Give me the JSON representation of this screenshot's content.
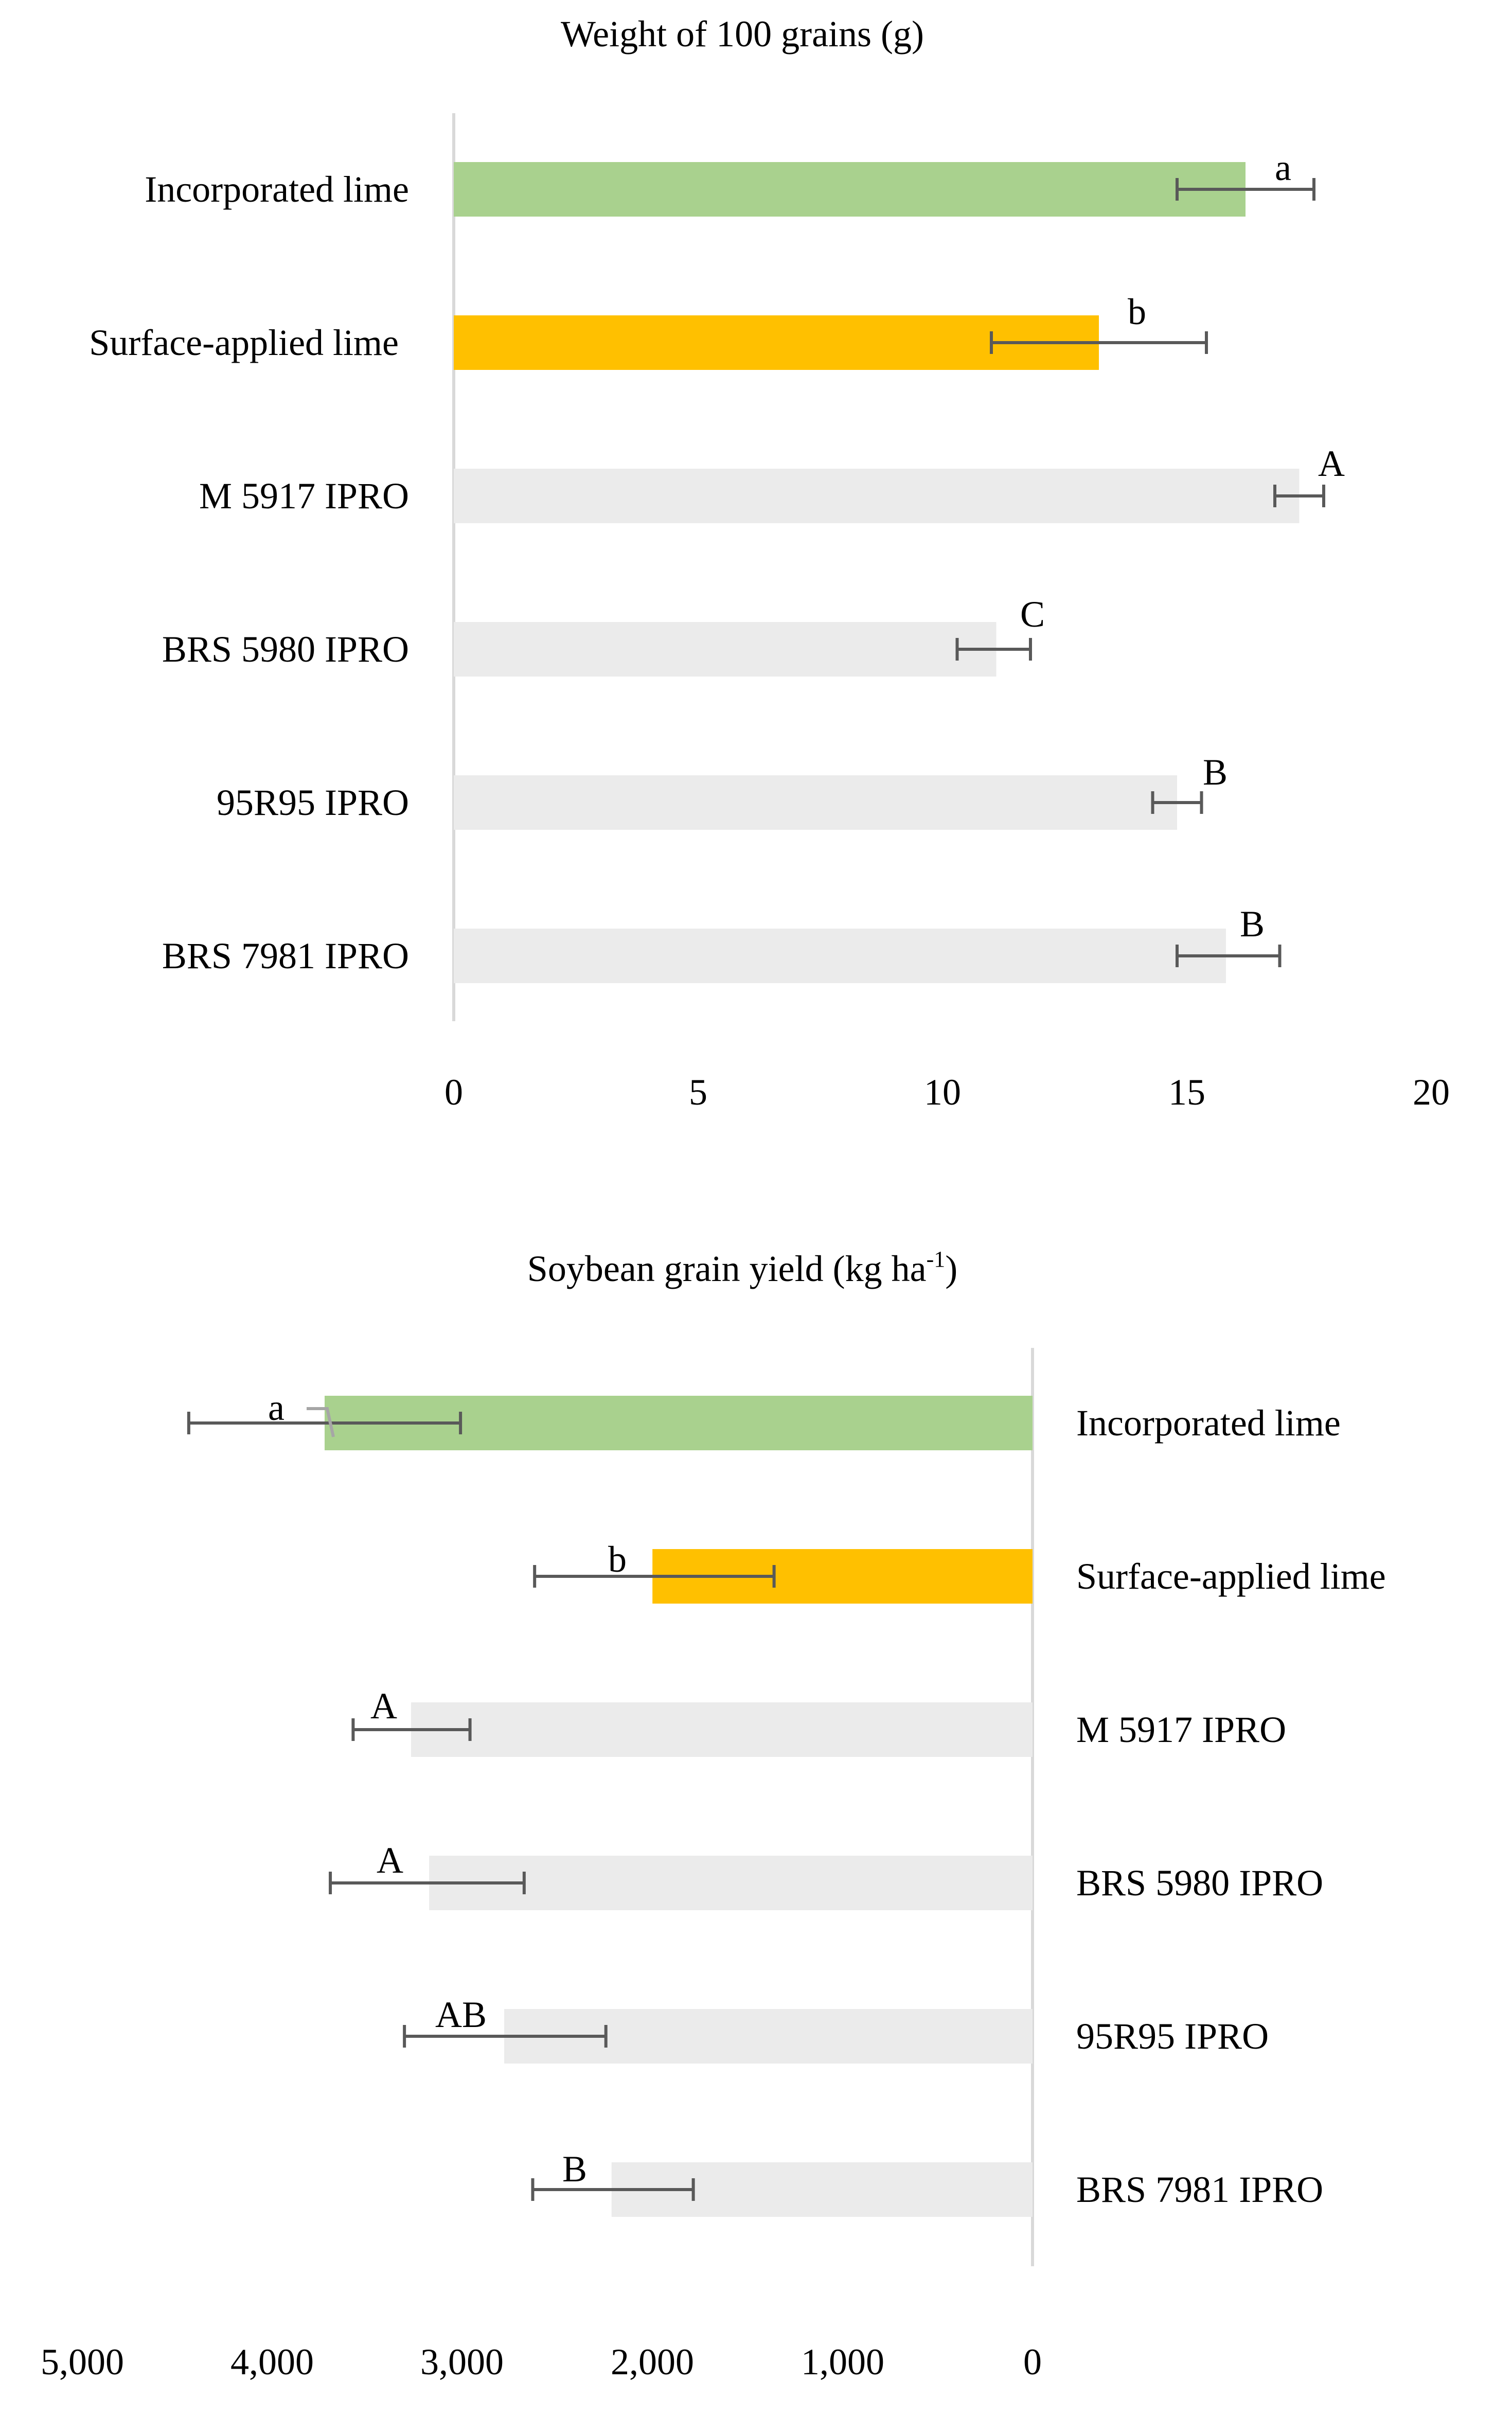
{
  "colors": {
    "incorporated": "#A9D18E",
    "surface": "#FFC000",
    "cultivar": "#EBEBEB",
    "axis": "#D9D9D9",
    "errorbar": "#595959"
  },
  "chart_data": [
    {
      "type": "bar",
      "orientation": "horizontal",
      "title": "Weight of 100 grains (g)",
      "xlabel": "",
      "ylabel": "",
      "xlim": [
        0,
        20
      ],
      "xticks": [
        "0",
        "5",
        "10",
        "15",
        "20"
      ],
      "grid": false,
      "legend": null,
      "categories": [
        "Incorporated lime",
        "Surface-applied lime",
        "M 5917 IPRO",
        "BRS 5980 IPRO",
        "95R95 IPRO",
        "BRS 7981 IPRO"
      ],
      "values": [
        16.2,
        13.2,
        17.3,
        11.1,
        14.8,
        15.8
      ],
      "error_low": [
        14.8,
        11.0,
        16.8,
        10.3,
        14.3,
        14.8
      ],
      "error_high": [
        17.6,
        15.4,
        17.8,
        11.8,
        15.3,
        16.9
      ],
      "letters": [
        "a",
        "b",
        "A",
        "C",
        "B",
        "B"
      ]
    },
    {
      "type": "bar",
      "orientation": "horizontal",
      "axis_reversed": true,
      "title": "Soybean grain yield (kg ha-1)",
      "xlabel": "",
      "ylabel": "",
      "xlim": [
        0,
        5000
      ],
      "xticks": [
        "5,000",
        "4,000",
        "3,000",
        "2,000",
        "1,000",
        "0"
      ],
      "grid": false,
      "legend": null,
      "categories": [
        "Incorporated lime",
        "Surface-applied lime",
        "M 5917 IPRO",
        "BRS 5980 IPRO",
        "95R95 IPRO",
        "BRS 7981 IPRO"
      ],
      "values": [
        3725,
        2000,
        3270,
        3175,
        2780,
        2215
      ],
      "error_low": [
        3010,
        1360,
        2960,
        2675,
        2245,
        1785
      ],
      "error_high": [
        4440,
        2620,
        3575,
        3695,
        3305,
        2630
      ],
      "letters": [
        "a",
        "b",
        "A",
        "A",
        "AB",
        "B"
      ]
    }
  ],
  "top": {
    "title": "Weight of 100 grains (g)",
    "labels": [
      "Incorporated lime",
      "Surface-applied lime",
      "M 5917 IPRO",
      "BRS 5980 IPRO",
      "95R95 IPRO",
      "BRS 7981 IPRO"
    ],
    "ticks": [
      "0",
      "5",
      "10",
      "15",
      "20"
    ],
    "letters": [
      "a",
      "b",
      "A",
      "C",
      "B",
      "B"
    ]
  },
  "bottom": {
    "title_main": "Soybean grain yield (kg ha",
    "title_sup": "-1",
    "title_close": ")",
    "labels": [
      "Incorporated lime",
      "Surface-applied lime",
      "M 5917 IPRO",
      "BRS 5980 IPRO",
      "95R95 IPRO",
      "BRS 7981 IPRO"
    ],
    "ticks": [
      "5,000",
      "4,000",
      "3,000",
      "2,000",
      "1,000",
      "0"
    ],
    "letters": [
      "a",
      "b",
      "A",
      "A",
      "AB",
      "B"
    ]
  }
}
